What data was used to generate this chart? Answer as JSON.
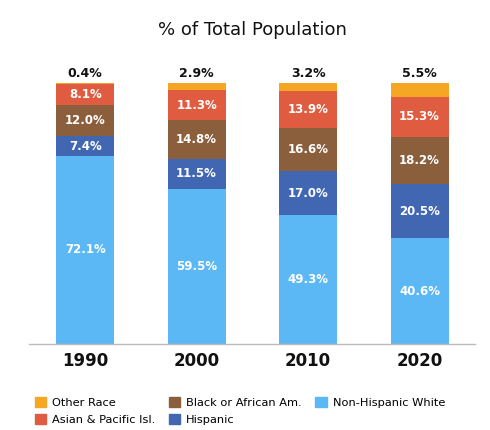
{
  "title": "% of Total Population",
  "years": [
    "1990",
    "2000",
    "2010",
    "2020"
  ],
  "top_labels": [
    "0.4%",
    "2.9%",
    "3.2%",
    "5.5%"
  ],
  "categories": [
    "Non-Hispanic White",
    "Hispanic",
    "Black or African Am.",
    "Asian & Pacific Isl.",
    "Other Race"
  ],
  "colors": [
    "#5BB8F5",
    "#4267B2",
    "#8B5E3C",
    "#E05C40",
    "#F5A623"
  ],
  "values": {
    "Non-Hispanic White": [
      72.1,
      59.5,
      49.3,
      40.6
    ],
    "Hispanic": [
      7.4,
      11.5,
      17.0,
      20.5
    ],
    "Black or African Am.": [
      12.0,
      14.8,
      16.6,
      18.2
    ],
    "Asian & Pacific Isl.": [
      8.1,
      11.3,
      13.9,
      15.3
    ],
    "Other Race": [
      0.4,
      2.9,
      3.2,
      5.5
    ]
  },
  "bar_labels": {
    "Non-Hispanic White": [
      "72.1%",
      "59.5%",
      "49.3%",
      "40.6%"
    ],
    "Hispanic": [
      "7.4%",
      "11.5%",
      "17.0%",
      "20.5%"
    ],
    "Black or African Am.": [
      "12.0%",
      "14.8%",
      "16.6%",
      "18.2%"
    ],
    "Asian & Pacific Isl.": [
      "8.1%",
      "11.3%",
      "13.9%",
      "15.3%"
    ],
    "Other Race": [
      "",
      "",
      "",
      ""
    ]
  },
  "legend_order": [
    "Other Race",
    "Asian & Pacific Isl.",
    "Black or African Am.",
    "Hispanic",
    "Non-Hispanic White"
  ],
  "background_color": "#FFFFFF",
  "bar_width": 0.52,
  "ylim": [
    0,
    112
  ],
  "figsize": [
    4.9,
    4.3
  ],
  "dpi": 100
}
